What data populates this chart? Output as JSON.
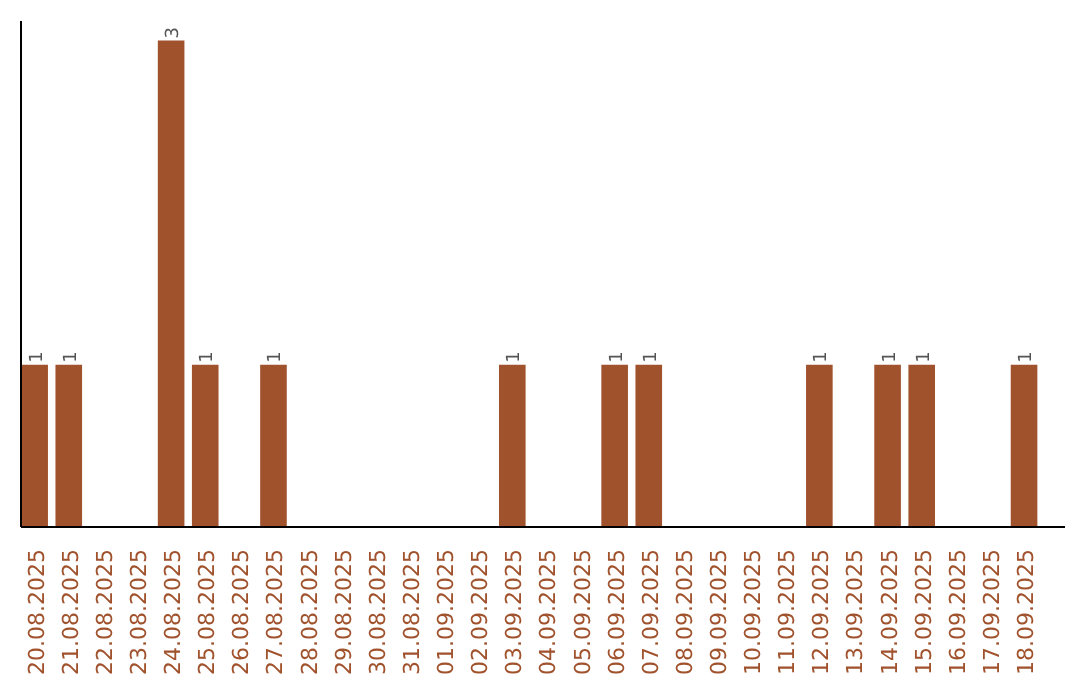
{
  "chart_data": {
    "type": "bar",
    "categories": [
      "20.08.2025",
      "21.08.2025",
      "22.08.2025",
      "23.08.2025",
      "24.08.2025",
      "25.08.2025",
      "26.08.2025",
      "27.08.2025",
      "28.08.2025",
      "29.08.2025",
      "30.08.2025",
      "31.08.2025",
      "01.09.2025",
      "02.09.2025",
      "03.09.2025",
      "04.09.2025",
      "05.09.2025",
      "06.09.2025",
      "07.09.2025",
      "08.09.2025",
      "09.09.2025",
      "10.09.2025",
      "11.09.2025",
      "12.09.2025",
      "13.09.2025",
      "14.09.2025",
      "15.09.2025",
      "16.09.2025",
      "17.09.2025",
      "18.09.2025"
    ],
    "values": [
      1,
      1,
      0,
      0,
      3,
      1,
      0,
      1,
      0,
      0,
      0,
      0,
      0,
      0,
      1,
      0,
      0,
      1,
      1,
      0,
      0,
      0,
      0,
      1,
      0,
      1,
      1,
      0,
      0,
      1
    ],
    "value_labels": [
      "1",
      "1",
      null,
      null,
      "3",
      "1",
      null,
      "1",
      null,
      null,
      null,
      null,
      null,
      null,
      "1",
      null,
      null,
      "1",
      "1",
      null,
      null,
      null,
      null,
      "1",
      null,
      "1",
      "1",
      null,
      null,
      "1"
    ],
    "color": "#a0522d",
    "tick_labels": "x",
    "grid": false
  }
}
